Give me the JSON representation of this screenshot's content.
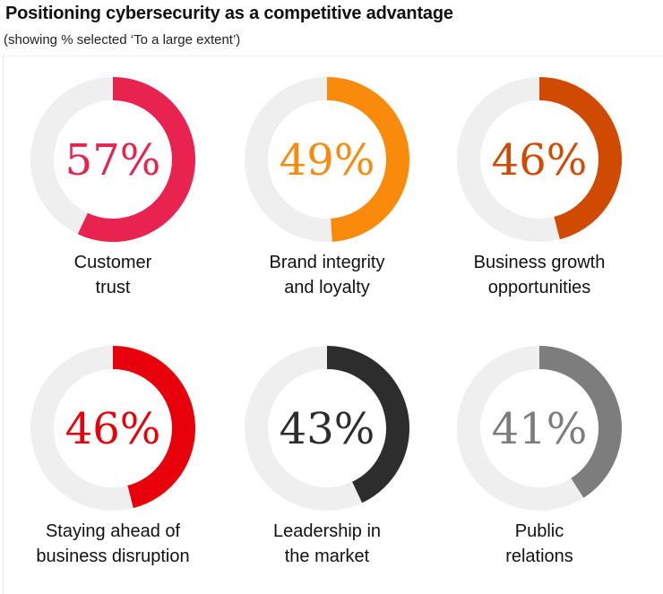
{
  "chart_data": {
    "type": "pie",
    "subtype": "donut",
    "title": "Positioning cybersecurity as a competitive advantage",
    "subtitle": "(showing % selected ‘To a large extent’)",
    "track_color": "#efefef",
    "items": [
      {
        "value": 57,
        "display": "57%",
        "label": [
          "Customer",
          "trust"
        ],
        "color": "#e8234f"
      },
      {
        "value": 49,
        "display": "49%",
        "label": [
          "Brand integrity",
          "and loyalty"
        ],
        "color": "#f98a0c"
      },
      {
        "value": 46,
        "display": "46%",
        "label": [
          "Business growth",
          "opportunities"
        ],
        "color": "#d04a02"
      },
      {
        "value": 46,
        "display": "46%",
        "label": [
          "Staying ahead of",
          "business disruption"
        ],
        "color": "#e8000b"
      },
      {
        "value": 43,
        "display": "43%",
        "label": [
          "Leadership in",
          "the market"
        ],
        "color": "#2d2d2d"
      },
      {
        "value": 41,
        "display": "41%",
        "label": [
          "Public",
          "relations"
        ],
        "color": "#7d7d7d"
      }
    ]
  }
}
